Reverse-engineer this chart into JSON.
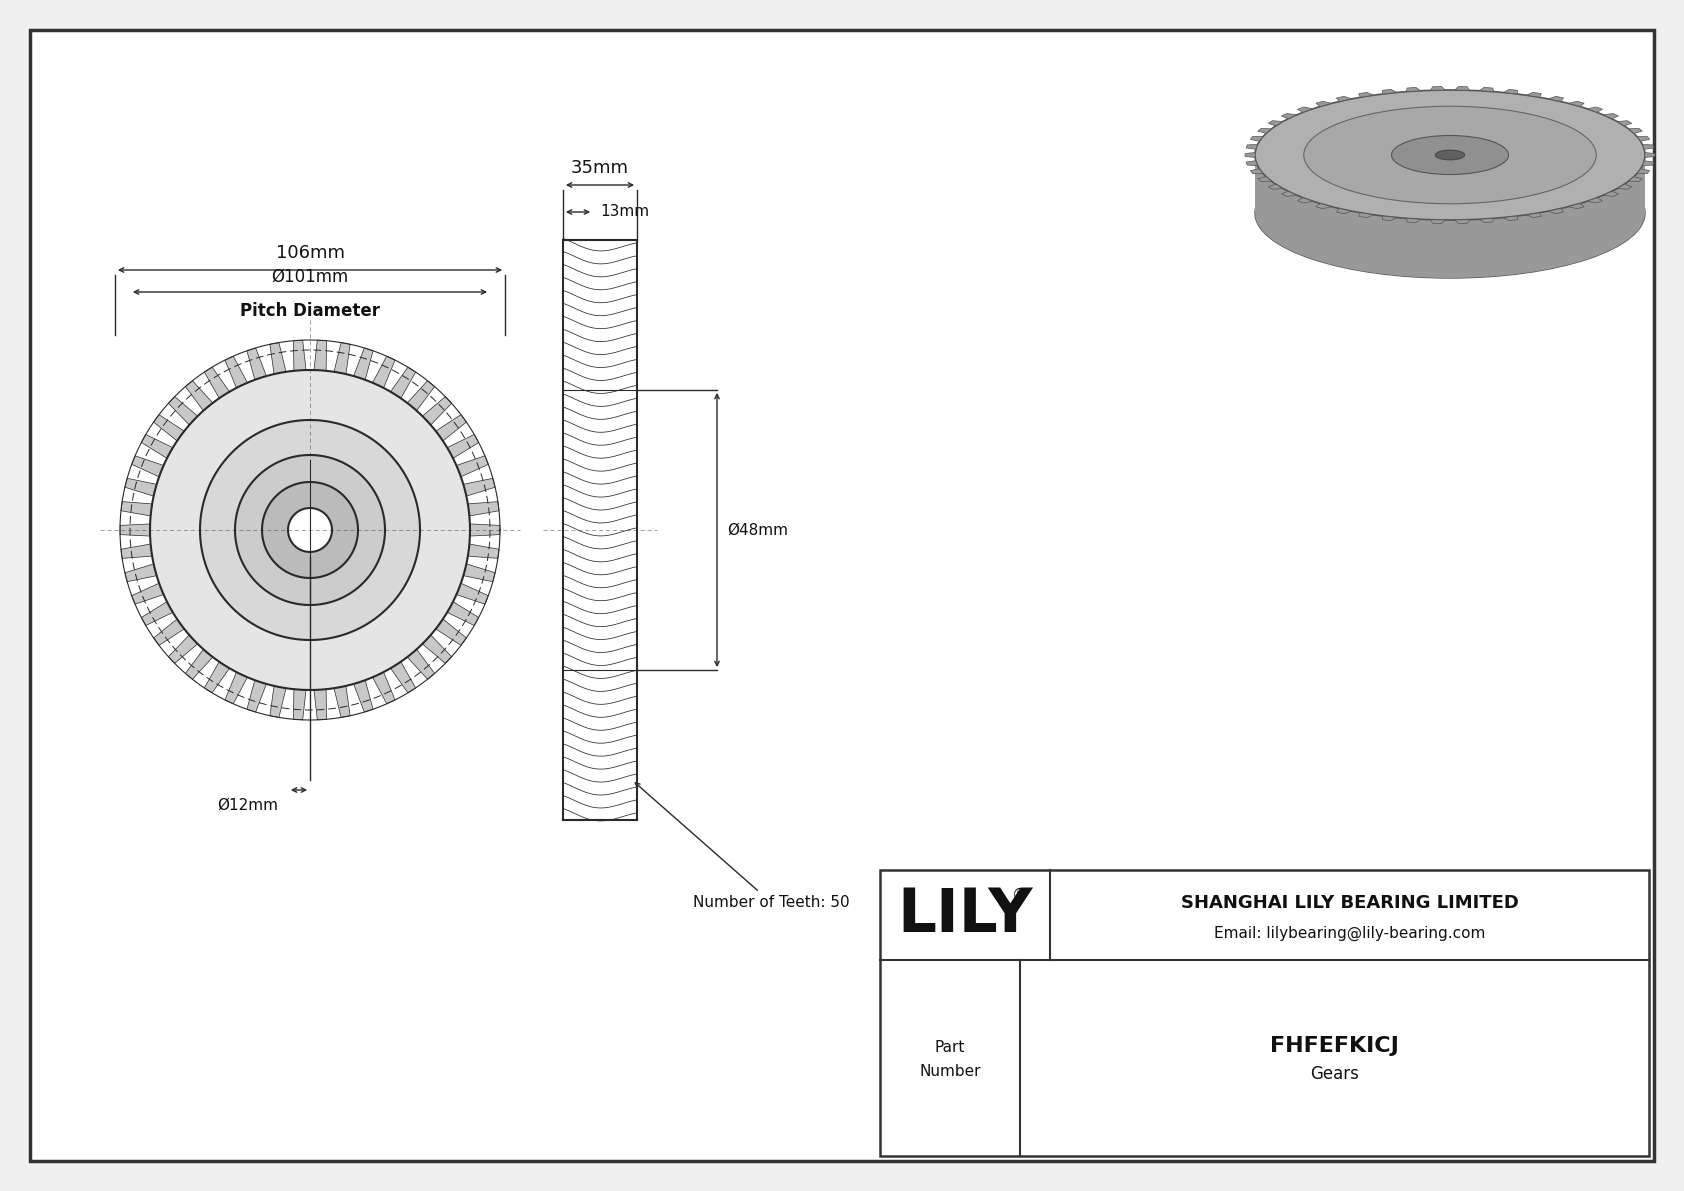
{
  "bg_color": "#f2f2f2",
  "line_color": "#2a2a2a",
  "title": "FHFEFKICJ",
  "subtitle": "Gears",
  "company": "SHANGHAI LILY BEARING LIMITED",
  "email": "Email: lilybearing@lily-bearing.com",
  "part_label": "Part\nNumber",
  "dim_106": "106mm",
  "dim_101": "Ø101mm",
  "pitch_label": "Pitch Diameter",
  "dim_35": "35mm",
  "dim_13": "13mm",
  "dim_48": "Ø48mm",
  "dim_12": "Ø12mm",
  "teeth_label": "Number of Teeth: 50",
  "n_teeth": 50,
  "fig_width": 16.84,
  "fig_height": 11.91,
  "fig_dpi": 100
}
